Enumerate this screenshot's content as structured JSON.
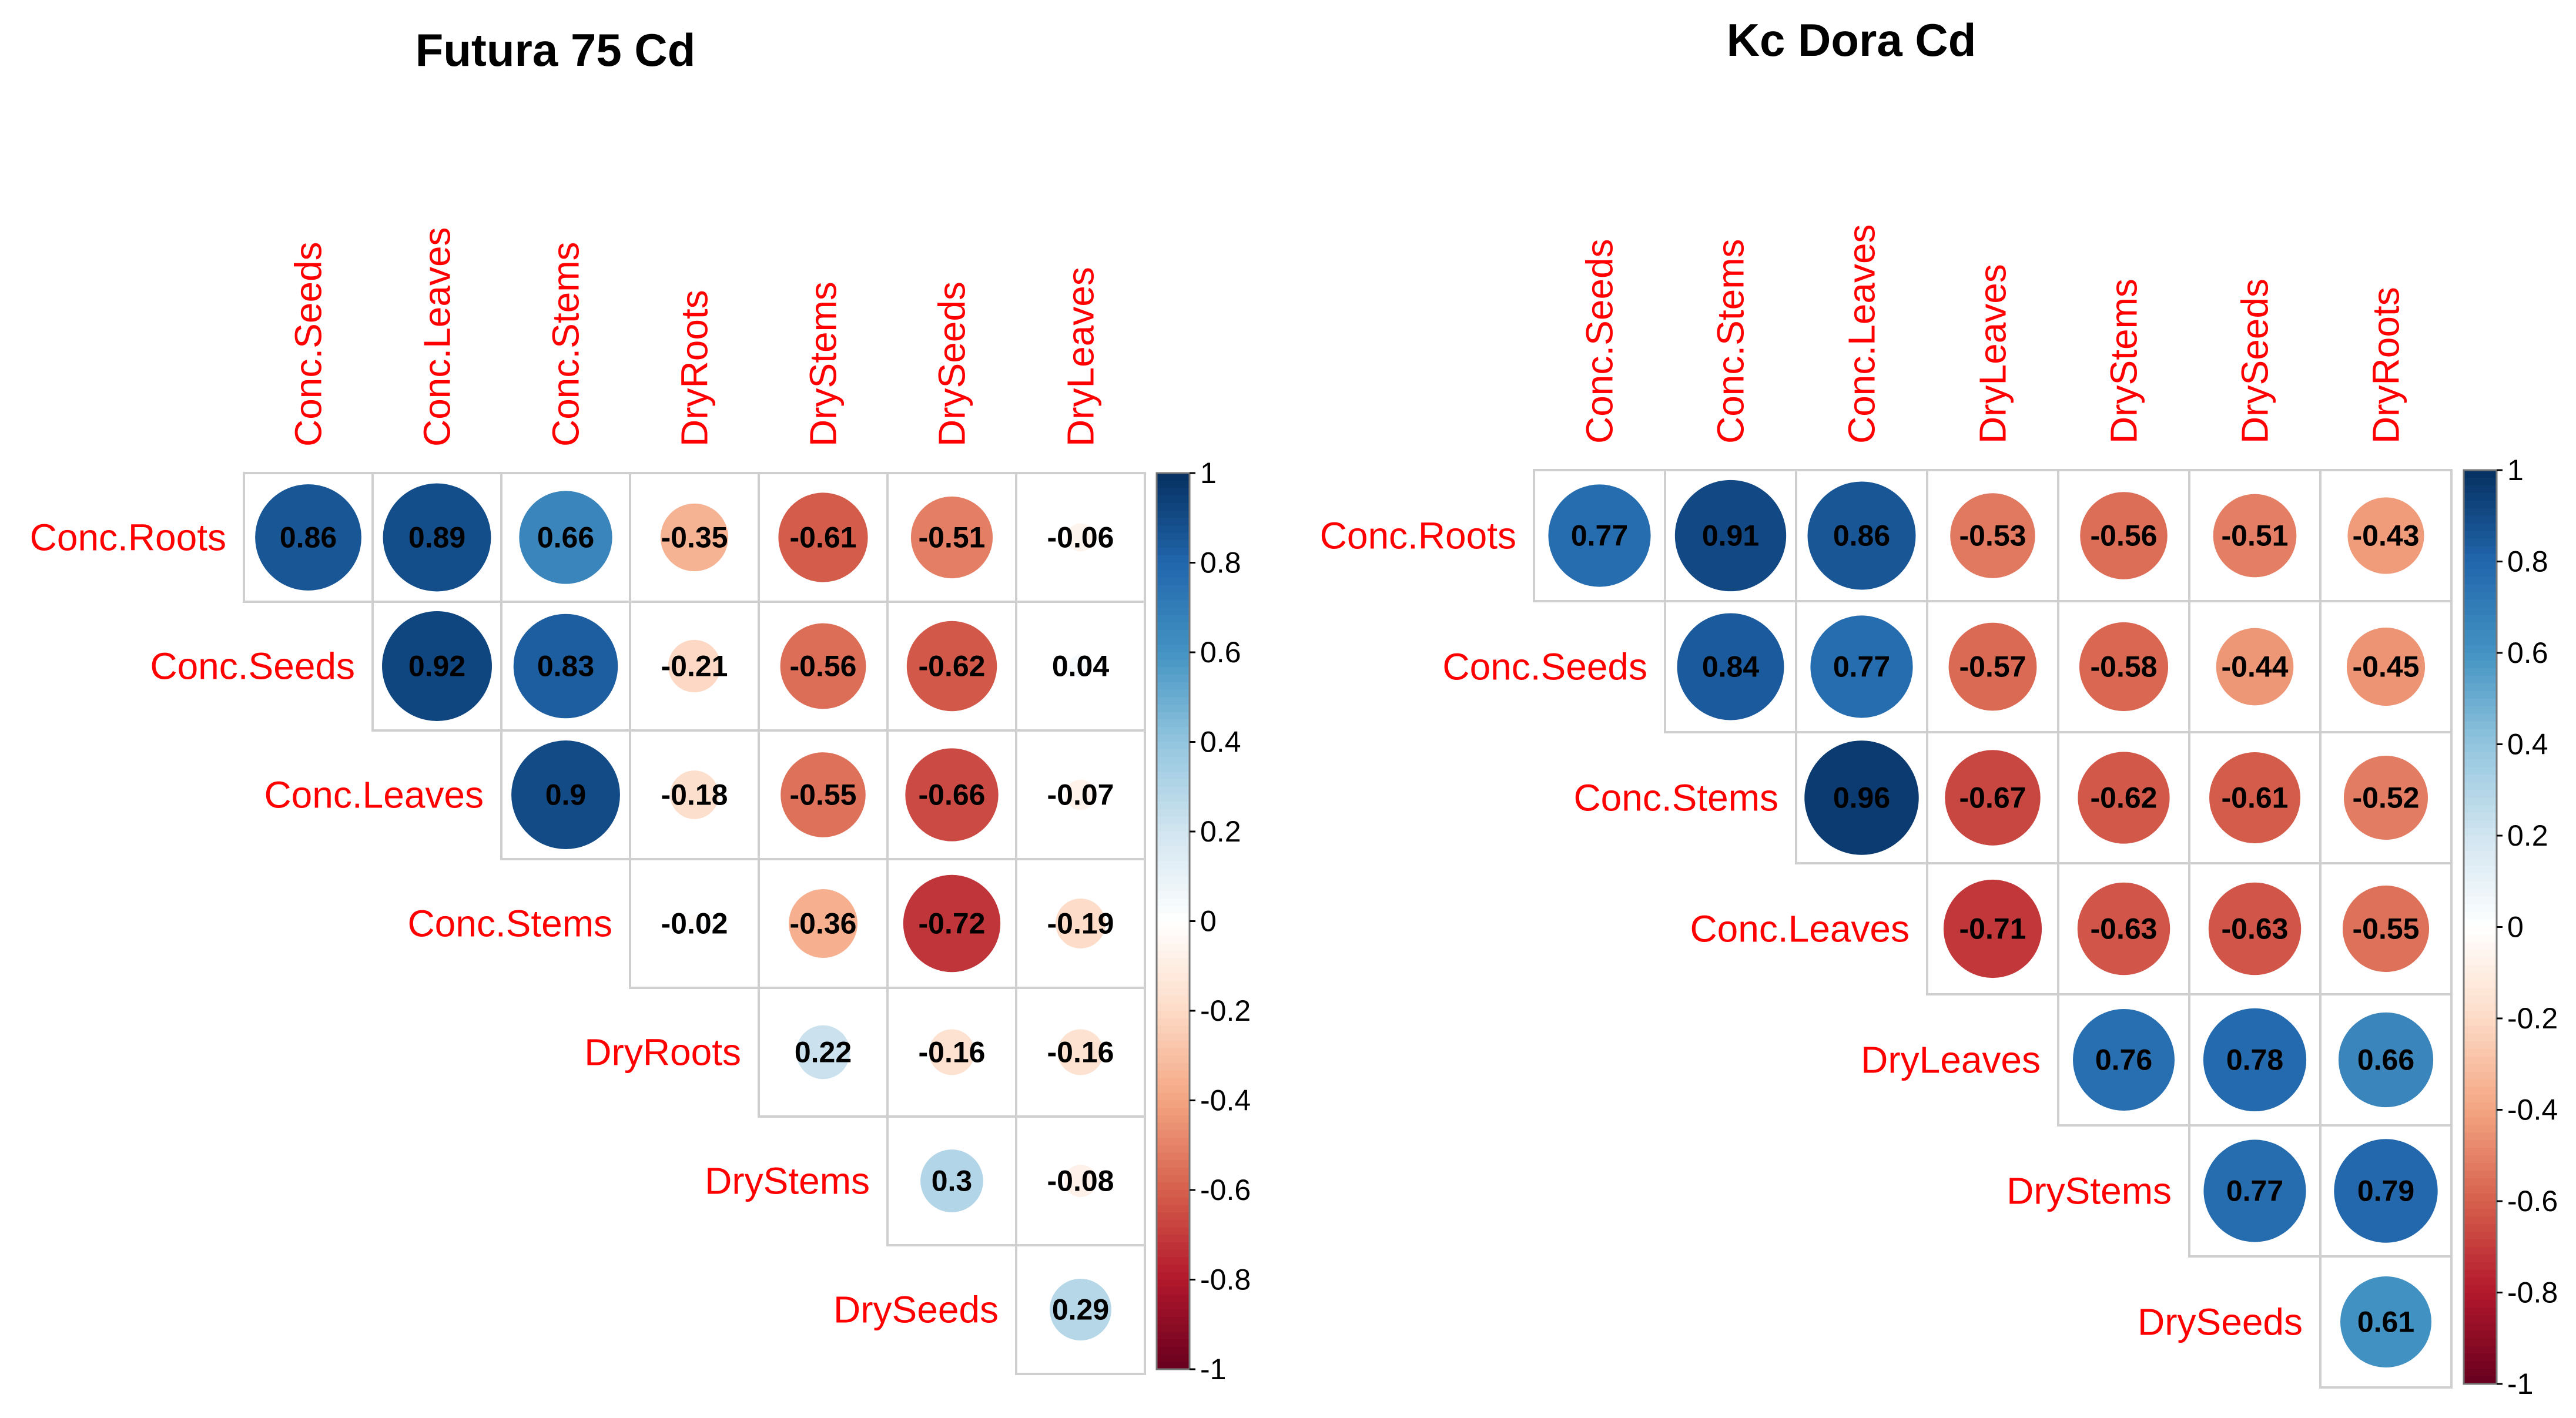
{
  "chart_data": [
    {
      "type": "heatmap",
      "style": "corrplot-circle-upper",
      "title": "Futura 75 Cd",
      "columns": [
        "Conc.Seeds",
        "Conc.Leaves",
        "Conc.Stems",
        "DryRoots",
        "DryStems",
        "DrySeeds",
        "DryLeaves"
      ],
      "rows": [
        "Conc.Roots",
        "Conc.Seeds",
        "Conc.Leaves",
        "Conc.Stems",
        "DryRoots",
        "DryStems",
        "DrySeeds"
      ],
      "values": [
        [
          0.86,
          0.89,
          0.66,
          -0.35,
          -0.61,
          -0.51,
          -0.06
        ],
        [
          null,
          0.92,
          0.83,
          -0.21,
          -0.56,
          -0.62,
          0.04
        ],
        [
          null,
          null,
          0.9,
          -0.18,
          -0.55,
          -0.66,
          -0.07
        ],
        [
          null,
          null,
          null,
          -0.02,
          -0.36,
          -0.72,
          -0.19
        ],
        [
          null,
          null,
          null,
          null,
          0.22,
          -0.16,
          -0.16
        ],
        [
          null,
          null,
          null,
          null,
          null,
          0.3,
          -0.08
        ],
        [
          null,
          null,
          null,
          null,
          null,
          null,
          0.29
        ]
      ],
      "labels": [
        [
          "0.86",
          "0.89",
          "0.66",
          "-0.35",
          "-0.61",
          "-0.51",
          "-0.06"
        ],
        [
          null,
          "0.92",
          "0.83",
          "-0.21",
          "-0.56",
          "-0.62",
          "0.04"
        ],
        [
          null,
          null,
          "0.9",
          "-0.18",
          "-0.55",
          "-0.66",
          "-0.07"
        ],
        [
          null,
          null,
          null,
          "-0.02",
          "-0.36",
          "-0.72",
          "-0.19"
        ],
        [
          null,
          null,
          null,
          null,
          "0.22",
          "-0.16",
          "-0.16"
        ],
        [
          null,
          null,
          null,
          null,
          null,
          "0.3",
          "-0.08"
        ],
        [
          null,
          null,
          null,
          null,
          null,
          null,
          "0.29"
        ]
      ],
      "colorbar": {
        "range": [
          -1,
          1
        ],
        "ticks": [
          "1",
          "0.8",
          "0.6",
          "0.4",
          "0.2",
          "0",
          "-0.2",
          "-0.4",
          "-0.6",
          "-0.8",
          "-1"
        ]
      }
    },
    {
      "type": "heatmap",
      "style": "corrplot-circle-upper",
      "title": "Kc Dora Cd",
      "columns": [
        "Conc.Seeds",
        "Conc.Stems",
        "Conc.Leaves",
        "DryLeaves",
        "DryStems",
        "DrySeeds",
        "DryRoots"
      ],
      "rows": [
        "Conc.Roots",
        "Conc.Seeds",
        "Conc.Stems",
        "Conc.Leaves",
        "DryLeaves",
        "DryStems",
        "DrySeeds"
      ],
      "values": [
        [
          0.77,
          0.91,
          0.86,
          -0.53,
          -0.56,
          -0.51,
          -0.43
        ],
        [
          null,
          0.84,
          0.77,
          -0.57,
          -0.58,
          -0.44,
          -0.45
        ],
        [
          null,
          null,
          0.96,
          -0.67,
          -0.62,
          -0.61,
          -0.52
        ],
        [
          null,
          null,
          null,
          -0.71,
          -0.63,
          -0.63,
          -0.55
        ],
        [
          null,
          null,
          null,
          null,
          0.76,
          0.78,
          0.66
        ],
        [
          null,
          null,
          null,
          null,
          null,
          0.77,
          0.79
        ],
        [
          null,
          null,
          null,
          null,
          null,
          null,
          0.61
        ]
      ],
      "labels": [
        [
          "0.77",
          "0.91",
          "0.86",
          "-0.53",
          "-0.56",
          "-0.51",
          "-0.43"
        ],
        [
          null,
          "0.84",
          "0.77",
          "-0.57",
          "-0.58",
          "-0.44",
          "-0.45"
        ],
        [
          null,
          null,
          "0.96",
          "-0.67",
          "-0.62",
          "-0.61",
          "-0.52"
        ],
        [
          null,
          null,
          null,
          "-0.71",
          "-0.63",
          "-0.63",
          "-0.55"
        ],
        [
          null,
          null,
          null,
          null,
          "0.76",
          "0.78",
          "0.66"
        ],
        [
          null,
          null,
          null,
          null,
          null,
          "0.77",
          "0.79"
        ],
        [
          null,
          null,
          null,
          null,
          null,
          null,
          "0.61"
        ]
      ],
      "colorbar": {
        "range": [
          -1,
          1
        ],
        "ticks": [
          "1",
          "0.8",
          "0.6",
          "0.4",
          "0.2",
          "0",
          "-0.2",
          "-0.4",
          "-0.6",
          "-0.8",
          "-1"
        ]
      }
    }
  ],
  "colors": {
    "label": "#ff0000",
    "grid": "#cfcfcf",
    "value_text": "#000000",
    "scale": [
      "#67001f",
      "#b2182b",
      "#d6604d",
      "#f4a582",
      "#fddbc7",
      "#ffffff",
      "#d1e5f0",
      "#92c5de",
      "#4393c3",
      "#2166ac",
      "#053061"
    ]
  }
}
